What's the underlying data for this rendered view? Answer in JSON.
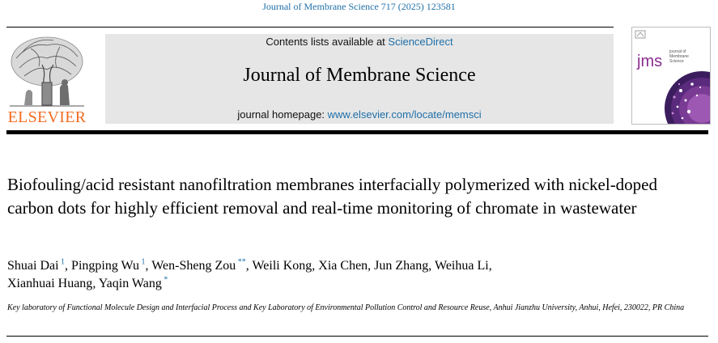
{
  "citation": "Journal of Membrane Science 717 (2025) 123581",
  "publisher": {
    "wordmark": "ELSEVIER",
    "wordmark_color": "#f26b22"
  },
  "header": {
    "contents_prefix": "Contents lists available at ",
    "contents_link": "ScienceDirect",
    "journal_title": "Journal of Membrane Science",
    "homepage_prefix": "journal homepage: ",
    "homepage_link": "www.elsevier.com/locate/memsci",
    "panel_color": "#e6e6e6",
    "link_color": "#1f6fa8"
  },
  "cover": {
    "logo_text": "jms",
    "subtitle_line1": "journal of",
    "subtitle_line2": "Membrane",
    "subtitle_line3": "Science",
    "accent_color": "#8a2c8f"
  },
  "article": {
    "title": "Biofouling/acid resistant nanofiltration membranes interfacially polymerized with nickel-doped carbon dots for highly efficient removal and real-time monitoring of chromate in wastewater",
    "authors": [
      {
        "name": "Shuai Dai",
        "mark": "1"
      },
      {
        "name": "Pingping Wu",
        "mark": "1"
      },
      {
        "name": "Wen-Sheng Zou",
        "mark": "**"
      },
      {
        "name": "Weili Kong",
        "mark": ""
      },
      {
        "name": "Xia Chen",
        "mark": ""
      },
      {
        "name": "Jun Zhang",
        "mark": ""
      },
      {
        "name": "Weihua Li",
        "mark": ""
      },
      {
        "name": "Xianhuai Huang",
        "mark": ""
      },
      {
        "name": "Yaqin Wang",
        "mark": "*"
      }
    ],
    "affiliation": "Key laboratory of Functional Molecule Design and Interfacial Process and Key Laboratory of Environmental Pollution Control and Resource Reuse, Anhui Jianzhu University, Anhui, Hefei, 230022, PR China"
  }
}
